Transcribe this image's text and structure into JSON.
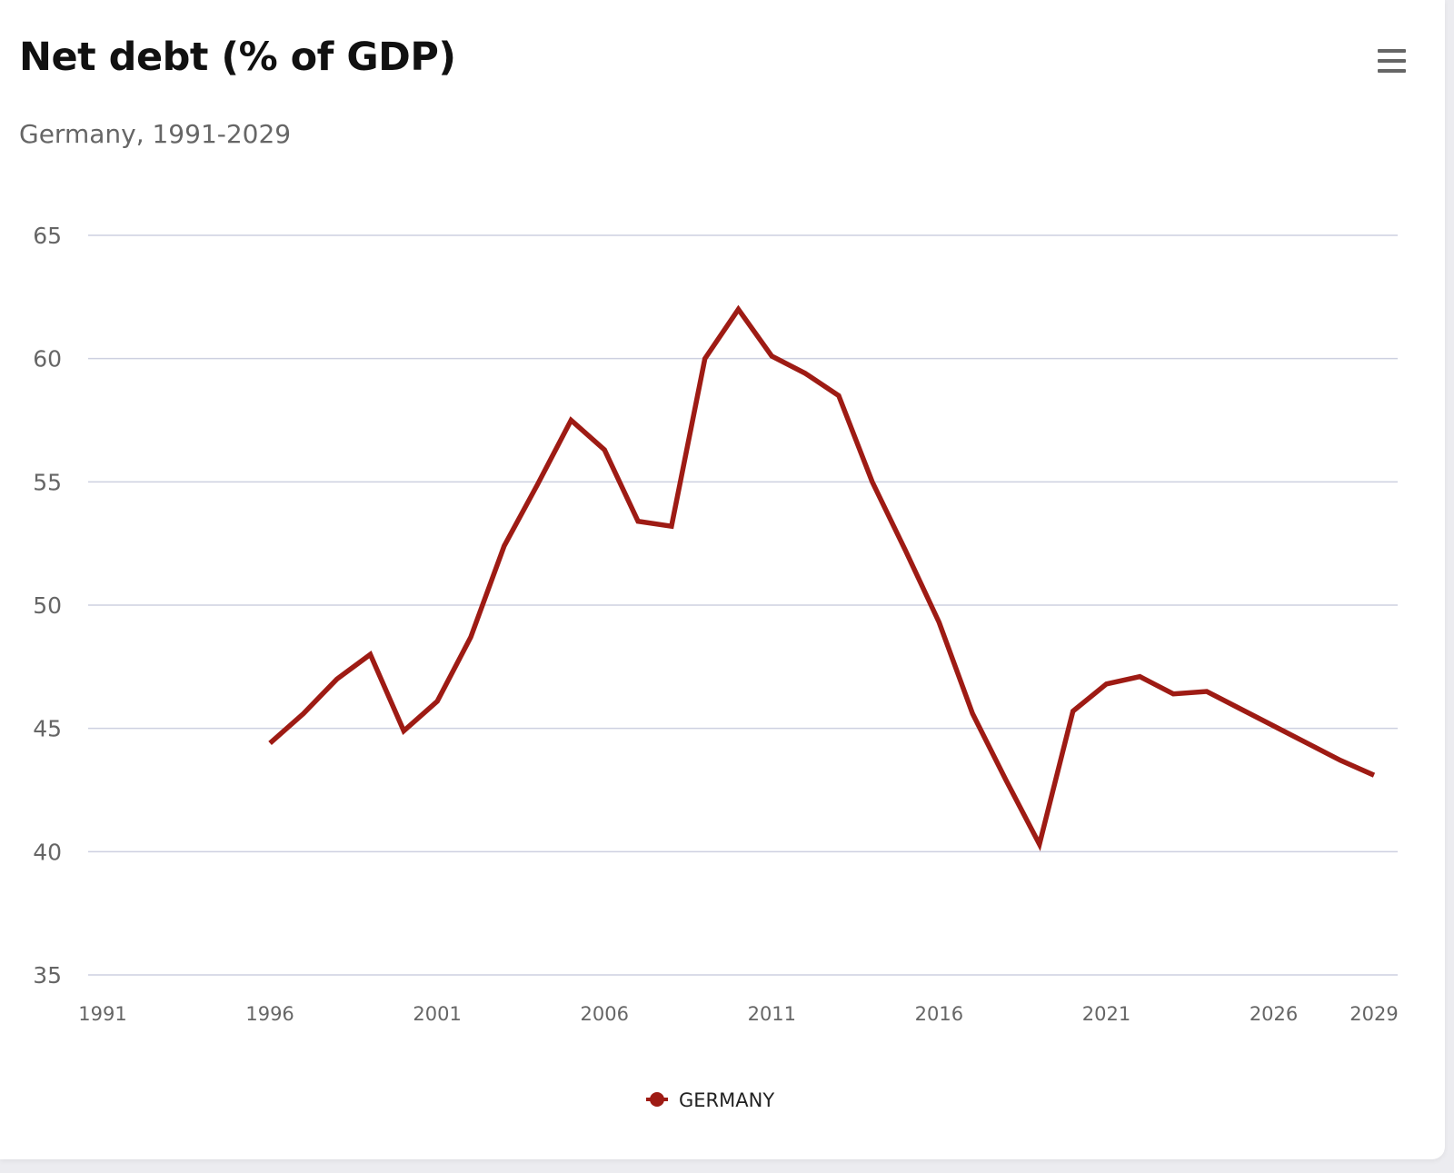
{
  "header": {
    "title": "Net debt (% of GDP)",
    "subtitle": "Germany, 1991-2029",
    "menu_icon": "hamburger-menu-icon"
  },
  "colors": {
    "series": "#9e1b14",
    "grid": "#cdd0e0",
    "text": "#666666"
  },
  "chart_data": {
    "type": "line",
    "title": "Net debt (% of GDP)",
    "subtitle": "Germany, 1991-2029",
    "xlabel": "",
    "ylabel": "",
    "xlim": [
      1991,
      2029
    ],
    "ylim": [
      35,
      65
    ],
    "x_ticks": [
      1991,
      1996,
      2001,
      2006,
      2011,
      2016,
      2021,
      2026,
      2029
    ],
    "y_ticks": [
      35,
      40,
      45,
      50,
      55,
      60,
      65
    ],
    "grid": true,
    "legend_position": "bottom-center",
    "series": [
      {
        "name": "GERMANY",
        "color": "#9e1b14",
        "x": [
          1996,
          1997,
          1998,
          1999,
          2000,
          2001,
          2002,
          2003,
          2004,
          2005,
          2006,
          2007,
          2008,
          2009,
          2010,
          2011,
          2012,
          2013,
          2014,
          2015,
          2016,
          2017,
          2018,
          2019,
          2020,
          2021,
          2022,
          2023,
          2024,
          2025,
          2026,
          2027,
          2028,
          2029
        ],
        "values": [
          44.4,
          45.6,
          47.0,
          48.0,
          44.9,
          46.1,
          48.7,
          52.4,
          54.9,
          57.5,
          56.3,
          53.4,
          53.2,
          60.0,
          62.0,
          60.1,
          59.4,
          58.5,
          55.0,
          52.2,
          49.3,
          45.6,
          42.9,
          40.3,
          45.7,
          46.8,
          47.1,
          46.4,
          46.5,
          45.8,
          45.1,
          44.4,
          43.7,
          43.1
        ]
      }
    ]
  }
}
